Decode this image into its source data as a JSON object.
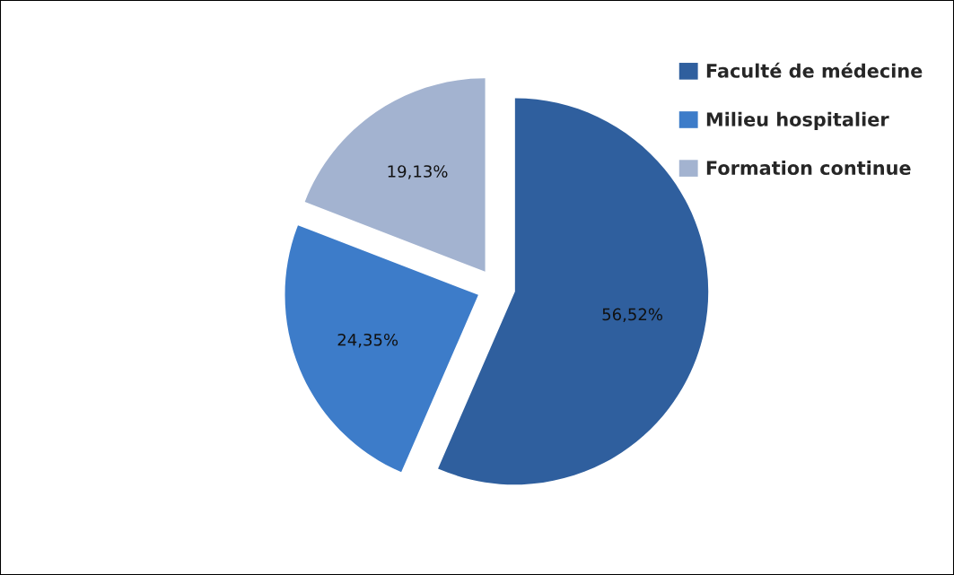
{
  "chart_data": {
    "type": "pie",
    "categories": [
      "Faculté de médecine",
      "Milieu hospitalier",
      "Formation continue"
    ],
    "values": [
      56.52,
      24.35,
      19.13
    ],
    "value_labels": [
      "56,52%",
      "24,35%",
      "19,13%"
    ],
    "colors": [
      "#2f5f9e",
      "#3d7cc9",
      "#a3b3d0"
    ],
    "legend": "top right"
  }
}
